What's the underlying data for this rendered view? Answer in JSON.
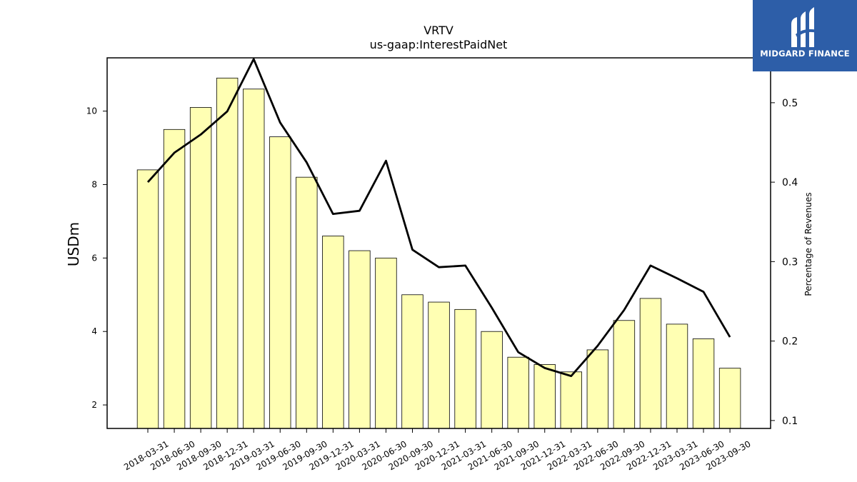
{
  "chart_data": {
    "type": "bar",
    "title": "VRTV",
    "subtitle": "us-gaap:InterestPaidNet",
    "ylabel": "USDm",
    "y2label": "Percentage of Revenues",
    "categories": [
      "2018-03-31",
      "2018-06-30",
      "2018-09-30",
      "2018-12-31",
      "2019-03-31",
      "2019-06-30",
      "2019-09-30",
      "2019-12-31",
      "2020-03-31",
      "2020-06-30",
      "2020-09-30",
      "2020-12-31",
      "2021-03-31",
      "2021-06-30",
      "2021-09-30",
      "2021-12-31",
      "2022-03-31",
      "2022-06-30",
      "2022-09-30",
      "2022-12-31",
      "2023-03-31",
      "2023-06-30",
      "2023-09-30"
    ],
    "series": [
      {
        "type": "bar",
        "axis": "left",
        "color": "#ffffb3",
        "values": [
          8.4,
          9.5,
          10.1,
          10.9,
          10.6,
          9.3,
          8.2,
          6.6,
          6.2,
          6.0,
          5.0,
          4.8,
          4.6,
          4.0,
          3.3,
          3.1,
          2.9,
          3.5,
          4.3,
          4.9,
          4.2,
          3.8,
          3.0
        ]
      },
      {
        "type": "line",
        "axis": "right",
        "color": "#000000",
        "values": [
          0.4,
          0.437,
          0.46,
          0.489,
          0.555,
          0.475,
          0.425,
          0.36,
          0.364,
          0.427,
          0.315,
          0.293,
          0.295,
          0.242,
          0.186,
          0.166,
          0.156,
          0.194,
          0.239,
          0.295,
          0.279,
          0.262,
          0.205
        ]
      }
    ],
    "yticks": [
      2,
      4,
      6,
      8,
      10
    ],
    "y2ticks": [
      0.1,
      0.2,
      0.3,
      0.4,
      0.5
    ],
    "ylim": [
      1.36,
      11.45
    ],
    "y2lim": [
      0.09,
      0.5565
    ],
    "grid": false
  },
  "logo": {
    "text": "MIDGARD FINANCE",
    "background": "#2d5ea8"
  }
}
